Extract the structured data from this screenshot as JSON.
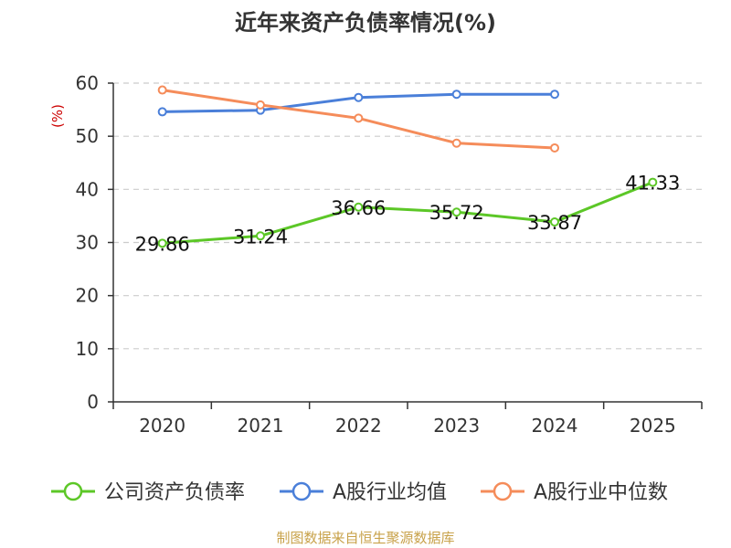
{
  "chart_data": {
    "type": "line",
    "title": "近年来资产负债率情况(%)",
    "ylabel": "(%)",
    "xlabel": "",
    "categories": [
      "2020",
      "2021",
      "2022",
      "2023",
      "2024",
      "2025"
    ],
    "ylim": [
      0,
      60
    ],
    "yticks": [
      0,
      10,
      20,
      30,
      40,
      50,
      60
    ],
    "grid": true,
    "legend_position": "bottom",
    "series": [
      {
        "name": "公司资产负债率",
        "color": "#5cc727",
        "values": [
          29.86,
          31.24,
          36.66,
          35.72,
          33.87,
          41.33
        ],
        "labels": [
          "29.86",
          "31.24",
          "36.66",
          "35.72",
          "33.87",
          "41.33"
        ],
        "show_labels": true
      },
      {
        "name": "A股行业均值",
        "color": "#4a7fd9",
        "values": [
          54.6,
          54.9,
          57.3,
          57.9,
          57.9,
          null
        ],
        "show_labels": false
      },
      {
        "name": "A股行业中位数",
        "color": "#f58c5a",
        "values": [
          58.7,
          55.9,
          53.4,
          48.7,
          47.8,
          null
        ],
        "show_labels": false
      }
    ],
    "source": "制图数据来自恒生聚源数据库",
    "colors": {
      "title": "#333333",
      "ylabel": "#cc0000",
      "source": "#c8a24a",
      "axis": "#333333",
      "grid": "#cccccc"
    }
  }
}
